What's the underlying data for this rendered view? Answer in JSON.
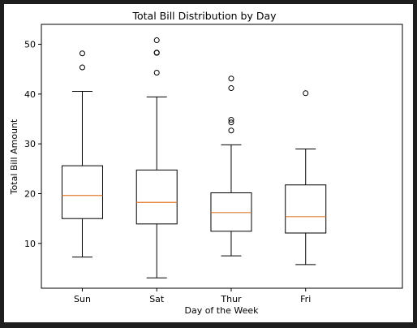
{
  "colors": {
    "background": "#1e1e1e",
    "figure": "#ffffff",
    "box": "#000000",
    "median": "#e07b2f",
    "flier": "#000000"
  },
  "chart_data": {
    "type": "box",
    "title": "Total Bill Distribution by Day",
    "xlabel": "Day of the Week",
    "ylabel": "Total Bill Amount",
    "ylim": [
      1,
      54
    ],
    "yticks": [
      10,
      20,
      30,
      40,
      50
    ],
    "grid": false,
    "categories": [
      "Sun",
      "Sat",
      "Thur",
      "Fri"
    ],
    "boxes": [
      {
        "category": "Sun",
        "whisker_low": 7.25,
        "q1": 14.99,
        "median": 19.63,
        "q3": 25.6,
        "whisker_high": 40.55,
        "fliers": [
          45.35,
          48.17
        ]
      },
      {
        "category": "Sat",
        "whisker_low": 3.07,
        "q1": 13.91,
        "median": 18.24,
        "q3": 24.74,
        "whisker_high": 39.42,
        "fliers": [
          44.3,
          48.27,
          48.33,
          50.81
        ]
      },
      {
        "category": "Thur",
        "whisker_low": 7.51,
        "q1": 12.44,
        "median": 16.2,
        "q3": 20.16,
        "whisker_high": 29.8,
        "fliers": [
          32.68,
          34.3,
          34.83,
          41.19,
          43.11
        ]
      },
      {
        "category": "Fri",
        "whisker_low": 5.75,
        "q1": 12.09,
        "median": 15.38,
        "q3": 21.75,
        "whisker_high": 28.97,
        "fliers": [
          40.17
        ]
      }
    ]
  }
}
